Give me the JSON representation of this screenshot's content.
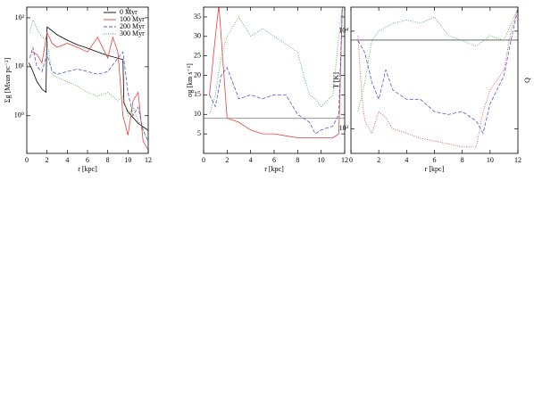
{
  "chart_data": [
    {
      "type": "line",
      "xlabel": "r [kpc]",
      "ylabel": "Σg [Msun pc⁻²]",
      "ylog": true,
      "xlim": [
        0,
        12
      ],
      "xticks": [
        0,
        2,
        4,
        6,
        8,
        10,
        12
      ],
      "ylim": [
        0.17,
        165
      ],
      "yticks": [
        {
          "value": 1,
          "label": "10⁰"
        },
        {
          "value": 10,
          "label": "10¹"
        },
        {
          "value": 100,
          "label": "10²"
        }
      ],
      "legend": "upper right",
      "series": [
        {
          "name": "0 Myr",
          "color": "#000000",
          "linestyle": "solid",
          "x": [
            0.2,
            0.5,
            1,
            1.5,
            1.9,
            2,
            3,
            4,
            5,
            6,
            7,
            8,
            9,
            9.5,
            9.6,
            10,
            11,
            12
          ],
          "values": [
            12,
            9,
            5,
            3.5,
            3,
            65,
            45,
            35,
            28,
            24,
            20,
            17,
            15,
            14,
            1.8,
            1.2,
            0.7,
            0.5
          ]
        },
        {
          "name": "100 Myr",
          "color": "#e8403c",
          "linestyle": "solid",
          "x": [
            0.5,
            1,
            1.5,
            2,
            2.5,
            3,
            4,
            5,
            6,
            7,
            8,
            8.5,
            9,
            9.5,
            10,
            10.5,
            11,
            11.5,
            12
          ],
          "values": [
            20,
            18,
            12,
            50,
            30,
            25,
            30,
            25,
            20,
            40,
            15,
            40,
            20,
            1,
            0.4,
            2,
            3,
            0.3,
            0.2
          ]
        },
        {
          "name": "200 Myr",
          "color": "#5656d8",
          "linestyle": "dashed",
          "x": [
            0.3,
            0.6,
            1,
            1.5,
            2,
            2.5,
            3,
            4,
            5,
            6,
            7,
            8,
            9,
            9.5,
            10,
            10.5,
            11,
            11.5,
            12
          ],
          "values": [
            15,
            25,
            10,
            8,
            18,
            8,
            7,
            8,
            9,
            8,
            7,
            8,
            15,
            20,
            3,
            1,
            1.5,
            0.5,
            0.3
          ]
        },
        {
          "name": "300 Myr",
          "color": "#3cae48",
          "linestyle": "dotted",
          "x": [
            0.3,
            0.6,
            1,
            1.5,
            2,
            2.5,
            3,
            4,
            5,
            6,
            7,
            8,
            9,
            9.5,
            10,
            10.5,
            11,
            11.5,
            12
          ],
          "values": [
            50,
            90,
            60,
            40,
            35,
            7,
            6,
            5,
            4,
            3,
            2.5,
            3,
            2,
            2.5,
            1,
            1.5,
            0.8,
            0.5,
            0.3
          ]
        }
      ]
    },
    {
      "type": "line",
      "xlabel": "r [kpc]",
      "ylabel": "σg [km s⁻¹]",
      "xlim": [
        0,
        12
      ],
      "xticks": [
        0,
        2,
        4,
        6,
        8,
        10,
        12
      ],
      "ylim": [
        0,
        37.5
      ],
      "yticks": [
        5,
        10,
        15,
        20,
        25,
        30,
        35
      ],
      "hline": {
        "value": 9,
        "color": "#888888"
      },
      "series": [
        {
          "color": "#e8403c",
          "linestyle": "solid",
          "x": [
            0.5,
            1,
            1.3,
            2,
            3,
            4,
            5,
            6,
            7,
            8,
            9,
            9.5,
            10,
            11,
            11.5,
            11.8
          ],
          "values": [
            15,
            30,
            38,
            9,
            8,
            6,
            5,
            5,
            4.5,
            4,
            4,
            4,
            4,
            4,
            5,
            38
          ]
        },
        {
          "color": "#5656d8",
          "linestyle": "dashed",
          "x": [
            0.5,
            1,
            1.5,
            2,
            3,
            4,
            5,
            6,
            7,
            8,
            9,
            9.5,
            10,
            11,
            11.5,
            11.8
          ],
          "values": [
            15,
            12,
            20,
            22,
            14,
            15,
            14,
            15,
            15,
            10,
            8,
            5,
            6,
            7,
            10,
            38
          ]
        },
        {
          "color": "#3cae48",
          "linestyle": "dotted",
          "x": [
            0.5,
            1,
            1.5,
            2,
            3,
            4,
            5,
            6,
            7,
            8,
            8.5,
            9,
            9.5,
            10,
            11,
            11.5,
            11.8
          ],
          "values": [
            10,
            15,
            25,
            30,
            35,
            30,
            32,
            30,
            28,
            26,
            20,
            15,
            14,
            12,
            15,
            30,
            38
          ]
        }
      ]
    },
    {
      "type": "line",
      "xlabel": "r [kpc]",
      "ylabel": "T [K]",
      "ylog": true,
      "xlim": [
        0,
        12
      ],
      "xticks": [
        0,
        2,
        4,
        6,
        8,
        10,
        12
      ],
      "ylim": [
        560,
        17600
      ],
      "yticks": [
        {
          "value": 1000,
          "label": "10³"
        },
        {
          "value": 10000,
          "label": "10⁴"
        }
      ],
      "hline": {
        "value": 8100,
        "color": "#555555"
      },
      "series": [
        {
          "color": "#e8403c",
          "linestyle": "dotted",
          "x": [
            0.5,
            0.8,
            1,
            1.5,
            2,
            2.5,
            3,
            4,
            5,
            6,
            7,
            8,
            9,
            9.5,
            10,
            11,
            11.5,
            12
          ],
          "values": [
            9000,
            2000,
            1200,
            900,
            1500,
            1300,
            1000,
            900,
            800,
            750,
            700,
            650,
            650,
            1500,
            2500,
            4000,
            10000,
            17000
          ]
        },
        {
          "color": "#5656d8",
          "linestyle": "dashed",
          "x": [
            0.5,
            1,
            1.5,
            2,
            2.5,
            3,
            4,
            5,
            6,
            7,
            8,
            9,
            9.5,
            10,
            11,
            11.5,
            12
          ],
          "values": [
            8000,
            6000,
            3000,
            2000,
            4000,
            2500,
            2000,
            2000,
            1500,
            1400,
            1500,
            1200,
            900,
            1800,
            3500,
            8000,
            17000
          ]
        },
        {
          "color": "#3cae48",
          "linestyle": "dotted",
          "x": [
            0.5,
            1,
            1.5,
            2,
            3,
            4,
            5,
            6,
            7,
            8,
            9,
            10,
            11,
            11.5,
            12
          ],
          "values": [
            1500,
            3000,
            8000,
            10000,
            12000,
            13000,
            12000,
            14000,
            9000,
            8000,
            7000,
            9000,
            8000,
            12000,
            17000
          ]
        }
      ]
    },
    {
      "type": "line",
      "ylabel": "Q"
    }
  ]
}
